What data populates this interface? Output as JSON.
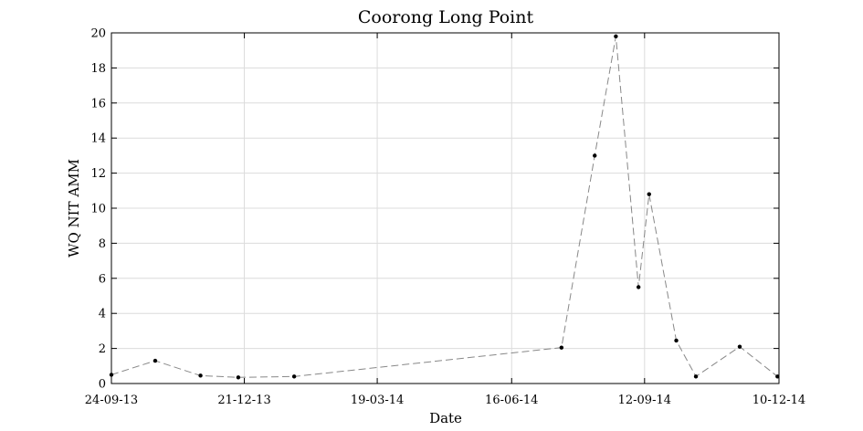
{
  "chart_data": {
    "type": "line",
    "title": "Coorong Long Point",
    "xlabel": "Date",
    "ylabel": "WQ NIT AMM",
    "x_type": "date",
    "xlim": [
      "2013-09-24",
      "2014-12-10"
    ],
    "ylim": [
      0,
      20
    ],
    "x_ticks": [
      {
        "date": "2013-09-24",
        "label": "24-09-13"
      },
      {
        "date": "2013-12-21",
        "label": "21-12-13"
      },
      {
        "date": "2014-03-19",
        "label": "19-03-14"
      },
      {
        "date": "2014-06-16",
        "label": "16-06-14"
      },
      {
        "date": "2014-09-12",
        "label": "12-09-14"
      },
      {
        "date": "2014-12-10",
        "label": "10-12-14"
      }
    ],
    "y_ticks": [
      0,
      2,
      4,
      6,
      8,
      10,
      12,
      14,
      16,
      18,
      20
    ],
    "grid": true,
    "series": [
      {
        "color": "#888888",
        "marker_color": "#000000",
        "line_style": "dashed",
        "points": [
          {
            "x": "2013-09-24",
            "y": 0.5
          },
          {
            "x": "2013-10-23",
            "y": 1.3
          },
          {
            "x": "2013-11-22",
            "y": 0.45
          },
          {
            "x": "2013-12-17",
            "y": 0.35
          },
          {
            "x": "2014-01-23",
            "y": 0.4
          },
          {
            "x": "2014-07-19",
            "y": 2.05
          },
          {
            "x": "2014-08-10",
            "y": 13.0
          },
          {
            "x": "2014-08-24",
            "y": 19.8
          },
          {
            "x": "2014-09-08",
            "y": 5.5
          },
          {
            "x": "2014-09-15",
            "y": 10.8
          },
          {
            "x": "2014-10-03",
            "y": 2.45
          },
          {
            "x": "2014-10-16",
            "y": 0.4
          },
          {
            "x": "2014-11-14",
            "y": 2.1
          },
          {
            "x": "2014-12-09",
            "y": 0.4
          }
        ]
      }
    ]
  }
}
